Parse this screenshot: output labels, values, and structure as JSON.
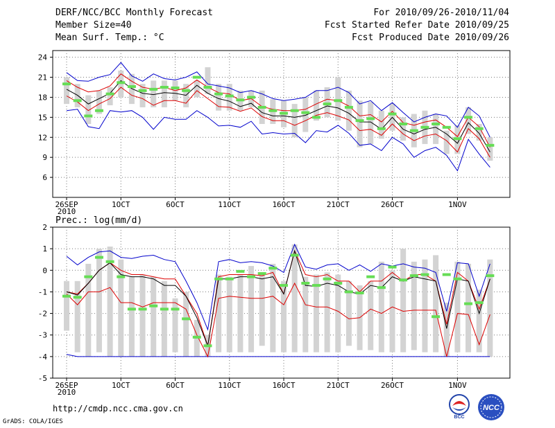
{
  "header": {
    "left_lines": [
      "DERF/NCC/BCC Monthly Forecast",
      "Member Size=40",
      "Mean Surf. Temp.: °C"
    ],
    "right_lines": [
      "For 2010/09/26-2010/11/04",
      "Fcst Started Refer Date 2010/09/25",
      "Fcst Produced Date 2010/09/26"
    ]
  },
  "footer": {
    "url": "http://cmdp.ncc.cma.gov.cn",
    "grads": "GrADS: COLA/IGES",
    "logo_left_text": "BCC",
    "logo_right_text": "NCC"
  },
  "colors": {
    "box": "#d3d3d3",
    "median": "#66dd55",
    "max": "#0000cc",
    "min": "#0000cc",
    "upper": "#dd0000",
    "lower": "#dd0000",
    "mean": "#000000"
  },
  "chart_data": [
    {
      "type": "box-line",
      "title": "Mean Surf. Temp.: °C",
      "ylim": [
        3,
        25
      ],
      "yticks": [
        "6",
        "9",
        "12",
        "15",
        "18",
        "21",
        "24"
      ],
      "xticks": [
        {
          "day": 1,
          "label": "26SEP",
          "sub": "2010"
        },
        {
          "day": 6,
          "label": "1OCT"
        },
        {
          "day": 11,
          "label": "6OCT"
        },
        {
          "day": 16,
          "label": "11OCT"
        },
        {
          "day": 21,
          "label": "16OCT"
        },
        {
          "day": 26,
          "label": "21OCT"
        },
        {
          "day": 31,
          "label": "26OCT"
        },
        {
          "day": 37,
          "label": "1NOV"
        }
      ],
      "days": 40,
      "box_top": [
        21.0,
        20.0,
        18.3,
        19.0,
        19.5,
        22.0,
        21.5,
        20.0,
        20.5,
        20.5,
        20.5,
        20.0,
        20.5,
        22.5,
        20.0,
        20.0,
        19.0,
        19.0,
        19.0,
        17.7,
        17.5,
        17.0,
        18.0,
        19.0,
        19.5,
        21.0,
        19.0,
        17.5,
        17.3,
        16.0,
        17.0,
        15.0,
        15.5,
        16.0,
        15.5,
        13.0,
        13.8,
        16.5,
        14.0,
        12.0
      ],
      "box_bottom": [
        17.0,
        16.5,
        14.0,
        15.5,
        16.8,
        18.0,
        17.0,
        16.5,
        16.5,
        16.5,
        17.5,
        16.5,
        18.0,
        18.5,
        16.0,
        16.0,
        16.0,
        16.5,
        14.0,
        14.0,
        13.5,
        12.0,
        12.8,
        14.5,
        15.0,
        14.5,
        13.0,
        10.5,
        11.0,
        11.8,
        13.0,
        11.5,
        10.5,
        11.0,
        11.0,
        9.5,
        9.5,
        12.5,
        11.5,
        8.5
      ],
      "median": [
        20.0,
        17.5,
        15.2,
        16.0,
        18.5,
        20.2,
        19.6,
        19.0,
        19.2,
        19.5,
        19.4,
        19.0,
        21.0,
        19.5,
        18.5,
        18.2,
        17.6,
        18.0,
        16.5,
        16.0,
        15.6,
        16.0,
        15.7,
        15.0,
        17.0,
        17.5,
        16.5,
        14.5,
        14.8,
        13.3,
        15.5,
        14.0,
        13.0,
        13.5,
        14.0,
        13.5,
        11.8,
        15.0,
        13.3,
        10.8
      ],
      "max": [
        21.7,
        20.5,
        20.4,
        21.0,
        21.4,
        23.2,
        21.2,
        20.4,
        21.5,
        20.8,
        20.6,
        21.0,
        21.8,
        20.0,
        19.7,
        19.4,
        18.7,
        19.0,
        18.5,
        17.8,
        17.5,
        17.7,
        18.0,
        19.0,
        19.0,
        19.5,
        18.7,
        17.0,
        17.5,
        16.0,
        17.2,
        15.7,
        14.3,
        15.0,
        15.5,
        15.2,
        13.5,
        16.5,
        15.2,
        12.0
      ],
      "upper": [
        20.5,
        19.5,
        18.8,
        19.0,
        19.7,
        21.5,
        20.4,
        19.5,
        19.2,
        19.5,
        19.0,
        19.4,
        20.6,
        19.5,
        18.7,
        18.5,
        17.5,
        17.8,
        16.6,
        16.2,
        16.0,
        16.0,
        16.2,
        17.0,
        17.7,
        17.5,
        16.7,
        15.2,
        15.4,
        14.3,
        15.9,
        14.2,
        13.8,
        14.3,
        14.6,
        13.5,
        12.1,
        15.0,
        13.6,
        10.5
      ],
      "mean": [
        19.2,
        18.3,
        17.0,
        17.8,
        18.6,
        20.5,
        19.3,
        18.6,
        18.4,
        18.7,
        18.6,
        18.3,
        19.8,
        18.6,
        17.8,
        17.4,
        16.6,
        17.1,
        15.7,
        15.2,
        15.2,
        15.0,
        15.3,
        16.0,
        16.7,
        16.4,
        15.6,
        14.3,
        14.3,
        13.2,
        15.0,
        13.2,
        12.5,
        13.2,
        13.5,
        12.5,
        11.1,
        14.2,
        12.6,
        9.8
      ],
      "lower": [
        18.2,
        17.3,
        16.0,
        17.0,
        17.8,
        19.5,
        18.3,
        17.8,
        16.8,
        17.5,
        17.5,
        17.1,
        19.0,
        17.8,
        16.6,
        16.5,
        15.9,
        16.4,
        15.1,
        14.5,
        14.5,
        13.8,
        14.5,
        15.3,
        15.7,
        15.2,
        14.6,
        13.0,
        13.2,
        12.3,
        14.0,
        12.5,
        11.5,
        12.2,
        12.5,
        11.5,
        9.8,
        13.3,
        11.8,
        9.0
      ],
      "min": [
        16.0,
        16.2,
        13.6,
        13.3,
        16.0,
        15.8,
        16.0,
        15.0,
        13.2,
        15.0,
        14.7,
        14.7,
        16.0,
        15.0,
        13.7,
        13.8,
        13.5,
        14.4,
        12.5,
        12.7,
        12.5,
        12.6,
        11.2,
        13.0,
        12.8,
        13.8,
        12.6,
        10.8,
        11.0,
        10.0,
        12.0,
        11.0,
        9.0,
        10.0,
        10.5,
        9.3,
        7.0,
        11.7,
        9.5,
        7.5
      ]
    },
    {
      "type": "box-line",
      "title": "Prec.: log(mm/d)",
      "ylim": [
        -5,
        2
      ],
      "yticks": [
        "-5",
        "-4",
        "-3",
        "-2",
        "-1",
        "0",
        "1",
        "2"
      ],
      "xticks": [
        {
          "day": 1,
          "label": "26SEP",
          "sub": "2010"
        },
        {
          "day": 6,
          "label": "1OCT"
        },
        {
          "day": 11,
          "label": "6OCT"
        },
        {
          "day": 16,
          "label": "11OCT"
        },
        {
          "day": 21,
          "label": "16OCT"
        },
        {
          "day": 26,
          "label": "21OCT"
        },
        {
          "day": 31,
          "label": "26OCT"
        },
        {
          "day": 37,
          "label": "1NOV"
        }
      ],
      "days": 40,
      "box_top": [
        -0.5,
        -0.5,
        0.3,
        1.0,
        1.1,
        0.5,
        -0.3,
        -0.2,
        -0.3,
        -0.5,
        -1.3,
        -1.0,
        -2.3,
        -3.0,
        -0.2,
        -0.3,
        -0.2,
        0.2,
        -0.1,
        0.3,
        -0.5,
        1.2,
        -0.3,
        -0.2,
        -0.1,
        -0.2,
        -0.5,
        -0.7,
        -0.5,
        0.4,
        0.0,
        1.0,
        0.4,
        0.5,
        0.7,
        -1.5,
        0.4,
        0.3,
        -0.9,
        0.5
      ],
      "box_bottom": [
        -2.8,
        -3.8,
        -4.0,
        -3.8,
        -4.0,
        -4.0,
        -4.0,
        -4.0,
        -4.0,
        -4.0,
        -3.8,
        -4.0,
        -4.0,
        -4.0,
        -3.8,
        -3.8,
        -3.8,
        -3.8,
        -3.5,
        -3.8,
        -3.8,
        -3.8,
        -3.8,
        -3.8,
        -3.8,
        -3.8,
        -3.5,
        -3.7,
        -3.7,
        -3.8,
        -3.8,
        -3.8,
        -3.7,
        -3.8,
        -3.8,
        -4.0,
        -3.8,
        -3.8,
        -3.8,
        -4.0
      ],
      "median": [
        -1.2,
        -1.25,
        -0.3,
        0.6,
        0.4,
        -0.3,
        -1.8,
        -1.8,
        -1.65,
        -1.8,
        -1.8,
        -2.25,
        -3.1,
        -3.5,
        -0.4,
        -0.4,
        -0.05,
        -0.3,
        -0.15,
        0.1,
        -0.7,
        0.7,
        -0.6,
        -0.7,
        -0.4,
        -0.6,
        -1.0,
        -1.05,
        -0.3,
        -0.8,
        0.15,
        -0.45,
        -0.25,
        -0.2,
        -2.15,
        -0.2,
        -0.4,
        -1.55,
        -1.5,
        -0.25
      ],
      "max": [
        0.65,
        0.25,
        0.6,
        0.85,
        0.9,
        0.6,
        0.55,
        0.65,
        0.7,
        0.5,
        0.4,
        -0.5,
        -1.5,
        -2.75,
        0.4,
        0.5,
        0.35,
        0.4,
        0.35,
        0.2,
        -0.1,
        1.2,
        0.15,
        0.05,
        0.25,
        0.3,
        0.0,
        0.25,
        -0.05,
        0.3,
        0.2,
        0.3,
        0.15,
        0.1,
        -0.1,
        -1.9,
        0.35,
        0.3,
        -1.2,
        0.3
      ],
      "upper": [
        -1.0,
        -1.1,
        -0.6,
        0.0,
        0.35,
        0.0,
        -0.2,
        -0.2,
        -0.3,
        -0.4,
        -0.4,
        -1.2,
        -2.0,
        -3.5,
        -0.3,
        -0.2,
        -0.2,
        -0.2,
        -0.25,
        -0.1,
        -1.1,
        0.9,
        -0.2,
        -0.3,
        -0.2,
        -0.5,
        -0.5,
        -1.0,
        -0.5,
        -0.5,
        -0.1,
        -0.5,
        -0.2,
        -0.2,
        -0.5,
        -2.5,
        -0.1,
        -0.5,
        -1.8,
        -0.4
      ],
      "mean": [
        -1.0,
        -1.15,
        -0.6,
        0.0,
        0.35,
        -0.2,
        -0.3,
        -0.3,
        -0.4,
        -0.7,
        -0.7,
        -1.2,
        -2.2,
        -3.5,
        -0.4,
        -0.4,
        -0.3,
        -0.3,
        -0.4,
        -0.3,
        -1.1,
        0.9,
        -0.7,
        -0.75,
        -0.6,
        -0.7,
        -1.0,
        -1.1,
        -0.7,
        -0.8,
        -0.3,
        -0.5,
        -0.3,
        -0.4,
        -0.5,
        -2.7,
        -0.4,
        -0.5,
        -2.0,
        -0.4
      ],
      "lower": [
        -1.1,
        -1.6,
        -1.0,
        -1.0,
        -0.8,
        -1.5,
        -1.5,
        -1.7,
        -1.5,
        -1.5,
        -1.5,
        -1.8,
        -3.0,
        -4.0,
        -1.3,
        -1.2,
        -1.25,
        -1.3,
        -1.3,
        -1.2,
        -1.6,
        -0.6,
        -1.6,
        -1.7,
        -1.7,
        -1.9,
        -2.25,
        -2.2,
        -1.8,
        -2.0,
        -1.7,
        -1.9,
        -1.85,
        -1.85,
        -1.85,
        -4.0,
        -2.0,
        -2.05,
        -3.45,
        -2.05
      ],
      "min": [
        -3.9,
        -4.0,
        -4.0,
        -4.0,
        -4.0,
        -4.0,
        -4.0,
        -4.0,
        -4.0,
        -4.0,
        -4.0,
        -4.0,
        -4.0,
        -4.0,
        -4.0,
        -4.0,
        -4.0,
        -4.0,
        -4.0,
        -4.0,
        -4.0,
        -4.0,
        -4.0,
        -4.0,
        -4.0,
        -4.0,
        -4.0,
        -4.0,
        -4.0,
        -4.0,
        -4.0,
        -4.0,
        -4.0,
        -4.0,
        -4.0,
        -4.0,
        -4.0,
        -4.0,
        -4.0,
        -4.0
      ]
    }
  ]
}
